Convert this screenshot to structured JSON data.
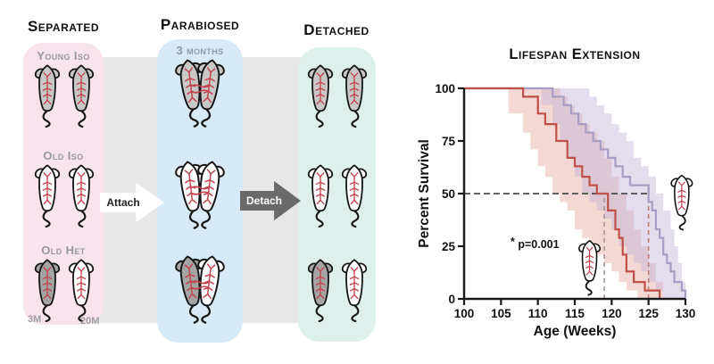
{
  "diagram": {
    "columns": [
      {
        "title": "Separated",
        "groups": [
          {
            "label": "Young Iso",
            "mice": [
              "young",
              "young"
            ]
          },
          {
            "label": "Old Iso",
            "mice": [
              "old",
              "old"
            ]
          },
          {
            "label": "Old Het",
            "mice": [
              "young_dark",
              "old"
            ]
          }
        ],
        "age_labels": [
          "3M",
          "20M"
        ]
      },
      {
        "title": "Parabiosed",
        "subtitle": "3 months",
        "pairs": [
          [
            "young",
            "young"
          ],
          [
            "old",
            "old"
          ],
          [
            "young_dark",
            "old"
          ]
        ]
      },
      {
        "title": "Detached",
        "pairs": [
          [
            "young",
            "young"
          ],
          [
            "old",
            "old"
          ],
          [
            "young_dark",
            "old"
          ]
        ]
      }
    ],
    "attach_arrow_label": "Attach",
    "detach_arrow_label": "Detach",
    "panel_colors": {
      "separated": "#f9e3ec",
      "parabiosed": "#d7eaf7",
      "detached": "#def0ec",
      "connector_band": "#e8e7e7",
      "detach_arrow": "#6a6a6a",
      "attach_arrow": "#ffffff"
    },
    "mouse_colors": {
      "young": "#c8c8c8",
      "old": "#ffffff",
      "young_dark": "#a4a4a4",
      "outline": "#161616",
      "vessels": "#c2434e"
    }
  },
  "chart_data": {
    "type": "line",
    "subtype": "survival-step (Kaplan-Meier)",
    "title": "Lifespan Extension",
    "xlabel": "Age (Weeks)",
    "ylabel": "Percent Survival",
    "xlim": [
      100,
      130
    ],
    "ylim": [
      0,
      100
    ],
    "xticks": [
      100,
      105,
      110,
      115,
      120,
      125,
      130
    ],
    "yticks": [
      0,
      25,
      50,
      75,
      100
    ],
    "grid": false,
    "annotation": "* p=0.001",
    "median_lines": {
      "survival_percent": 50,
      "old_iso_median_weeks": 119,
      "old_het_median_weeks": 125,
      "horizontal_color": "#4d4d4d",
      "old_iso_line_color": "#a89391",
      "old_het_line_color": "#bb8078"
    },
    "series": [
      {
        "name": "Old Iso",
        "color": "#c0504a",
        "band_color": "#e4a89e",
        "steps": [
          [
            100,
            100
          ],
          [
            108,
            96
          ],
          [
            110,
            88
          ],
          [
            111,
            83
          ],
          [
            112.5,
            75
          ],
          [
            114,
            67
          ],
          [
            115,
            63
          ],
          [
            116,
            58
          ],
          [
            117,
            54
          ],
          [
            118,
            50
          ],
          [
            119.5,
            42
          ],
          [
            120.5,
            33
          ],
          [
            121,
            29
          ],
          [
            121.5,
            21
          ],
          [
            122,
            13
          ],
          [
            123,
            8
          ],
          [
            124.5,
            4
          ],
          [
            126.5,
            0
          ]
        ],
        "band_hi": [
          [
            100,
            100
          ],
          [
            113,
            96
          ],
          [
            114,
            92
          ],
          [
            115,
            88
          ],
          [
            116,
            83
          ],
          [
            117,
            79
          ],
          [
            118,
            75
          ],
          [
            119,
            67
          ],
          [
            120,
            58
          ],
          [
            121,
            50
          ],
          [
            122,
            42
          ],
          [
            123,
            33
          ],
          [
            124,
            25
          ],
          [
            125,
            17
          ],
          [
            126,
            8
          ],
          [
            127,
            0
          ]
        ],
        "band_lo": [
          [
            100,
            100
          ],
          [
            106,
            88
          ],
          [
            108,
            79
          ],
          [
            109,
            71
          ],
          [
            110,
            63
          ],
          [
            111,
            58
          ],
          [
            112,
            50
          ],
          [
            113,
            46
          ],
          [
            114,
            42
          ],
          [
            115,
            33
          ],
          [
            116,
            29
          ],
          [
            117,
            25
          ],
          [
            118,
            21
          ],
          [
            119,
            17
          ],
          [
            120,
            13
          ],
          [
            121,
            8
          ],
          [
            122,
            4
          ],
          [
            123.5,
            0
          ]
        ]
      },
      {
        "name": "Old Het",
        "color": "#a89dc4",
        "band_color": "#c3b4d6",
        "steps": [
          [
            100,
            100
          ],
          [
            112,
            96
          ],
          [
            113.5,
            92
          ],
          [
            114.5,
            88
          ],
          [
            115.5,
            83
          ],
          [
            116.5,
            79
          ],
          [
            117.5,
            75
          ],
          [
            118.5,
            71
          ],
          [
            119.5,
            67
          ],
          [
            120.5,
            63
          ],
          [
            121.5,
            58
          ],
          [
            122.5,
            54
          ],
          [
            125,
            46
          ],
          [
            125.5,
            42
          ],
          [
            126,
            33
          ],
          [
            126.5,
            29
          ],
          [
            127,
            21
          ],
          [
            127.5,
            17
          ],
          [
            128,
            13
          ],
          [
            128.5,
            8
          ],
          [
            129.5,
            4
          ],
          [
            130,
            0
          ]
        ],
        "band_hi": [
          [
            100,
            100
          ],
          [
            117,
            96
          ],
          [
            118,
            92
          ],
          [
            119,
            88
          ],
          [
            120,
            83
          ],
          [
            121,
            79
          ],
          [
            122,
            75
          ],
          [
            123,
            67
          ],
          [
            124,
            63
          ],
          [
            125,
            58
          ],
          [
            126,
            50
          ],
          [
            127,
            42
          ],
          [
            128,
            33
          ],
          [
            128.5,
            25
          ],
          [
            129,
            17
          ],
          [
            129.5,
            8
          ],
          [
            130,
            0
          ]
        ],
        "band_lo": [
          [
            100,
            100
          ],
          [
            110.5,
            92
          ],
          [
            112,
            83
          ],
          [
            113,
            75
          ],
          [
            114,
            67
          ],
          [
            115,
            58
          ],
          [
            116,
            50
          ],
          [
            117,
            46
          ],
          [
            118,
            42
          ],
          [
            119,
            38
          ],
          [
            120,
            33
          ],
          [
            121,
            25
          ],
          [
            122,
            21
          ],
          [
            123,
            17
          ],
          [
            124,
            13
          ],
          [
            125,
            8
          ],
          [
            126,
            4
          ],
          [
            127,
            0
          ]
        ]
      }
    ],
    "icon_markers": [
      {
        "icon": "mouse",
        "series": "Old Iso",
        "weeks": 117,
        "percent": 15
      },
      {
        "icon": "mouse",
        "series": "Old Het",
        "weeks": 129.5,
        "percent": 46
      }
    ],
    "legend_position": "icons-on-plot"
  }
}
